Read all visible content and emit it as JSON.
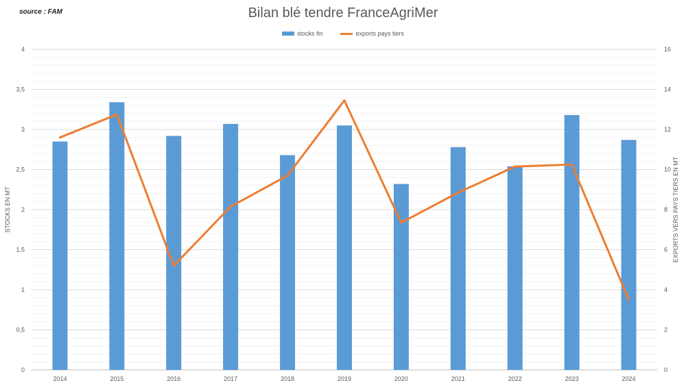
{
  "source": "source : FAM",
  "chart_data": {
    "type": "bar",
    "title": "Bilan blé tendre FranceAgriMer",
    "categories": [
      "2014",
      "2015",
      "2016",
      "2017",
      "2018",
      "2019",
      "2020",
      "2021",
      "2022",
      "2023",
      "2024"
    ],
    "series": [
      {
        "name": "stocks fin",
        "type": "bar",
        "axis": "left",
        "values": [
          2.85,
          3.34,
          2.92,
          3.07,
          2.68,
          3.05,
          2.32,
          2.78,
          2.54,
          3.18,
          2.87
        ]
      },
      {
        "name": "exports pays tiers",
        "type": "line",
        "axis": "right",
        "values": [
          11.6,
          12.75,
          5.2,
          8.15,
          9.7,
          13.45,
          7.35,
          8.85,
          10.15,
          10.25,
          3.5
        ]
      }
    ],
    "ylabel": "STOCKS EN MT",
    "y2label": "EXPORTS VERS PAYS TIERS EN MT",
    "ylim": [
      0,
      4
    ],
    "y2lim": [
      0,
      16
    ],
    "yticks": [
      "0",
      "0,5",
      "1",
      "1,5",
      "2",
      "2,5",
      "3",
      "3,5",
      "4"
    ],
    "y2ticks": [
      "0",
      "2",
      "4",
      "6",
      "8",
      "10",
      "12",
      "14",
      "16"
    ],
    "grid": true,
    "legend_position": "top-center",
    "colors": {
      "bar": "#5b9bd5",
      "line": "#ed7d31",
      "grid": "#d9d9d9",
      "text": "#595959"
    }
  }
}
